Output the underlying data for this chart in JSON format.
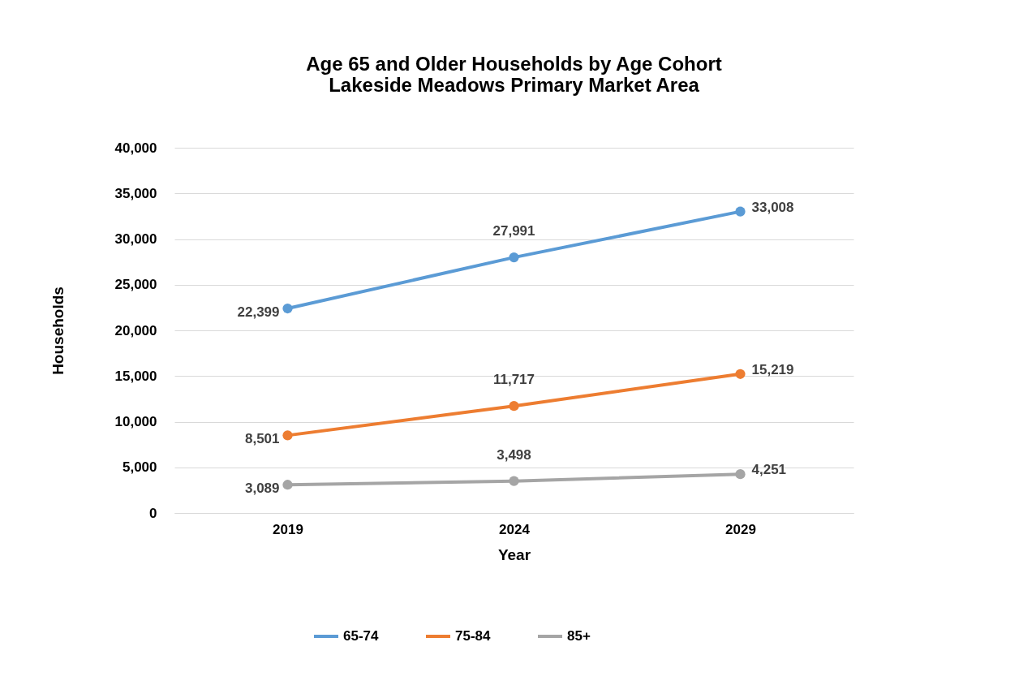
{
  "chart_data": {
    "type": "line",
    "title": "Age 65 and Older Households by Age Cohort\nLakeside Meadows Primary Market Area",
    "xlabel": "Year",
    "ylabel": "Households",
    "categories": [
      "2019",
      "2024",
      "2029"
    ],
    "series": [
      {
        "name": "65-74",
        "color": "#5b9bd5",
        "values": [
          22399,
          27991,
          33008
        ],
        "value_labels": [
          "22,399",
          "27,991",
          "33,008"
        ]
      },
      {
        "name": "75-84",
        "color": "#ed7d31",
        "values": [
          8501,
          11717,
          15219
        ],
        "value_labels": [
          "8,501",
          "11,717",
          "15,219"
        ]
      },
      {
        "name": "85+",
        "color": "#a5a5a5",
        "values": [
          3089,
          3498,
          4251
        ],
        "value_labels": [
          "3,089",
          "3,498",
          "4,251"
        ]
      }
    ],
    "ylim": [
      0,
      40000
    ],
    "yticks": [
      {
        "value": 0,
        "label": "0"
      },
      {
        "value": 5000,
        "label": "5,000"
      },
      {
        "value": 10000,
        "label": "10,000"
      },
      {
        "value": 15000,
        "label": "15,000"
      },
      {
        "value": 20000,
        "label": "20,000"
      },
      {
        "value": 25000,
        "label": "25,000"
      },
      {
        "value": 30000,
        "label": "30,000"
      },
      {
        "value": 35000,
        "label": "35,000"
      },
      {
        "value": 40000,
        "label": "40,000"
      }
    ],
    "grid": "y",
    "legend": "bottom",
    "marker": "circle",
    "line_style": "solid"
  }
}
